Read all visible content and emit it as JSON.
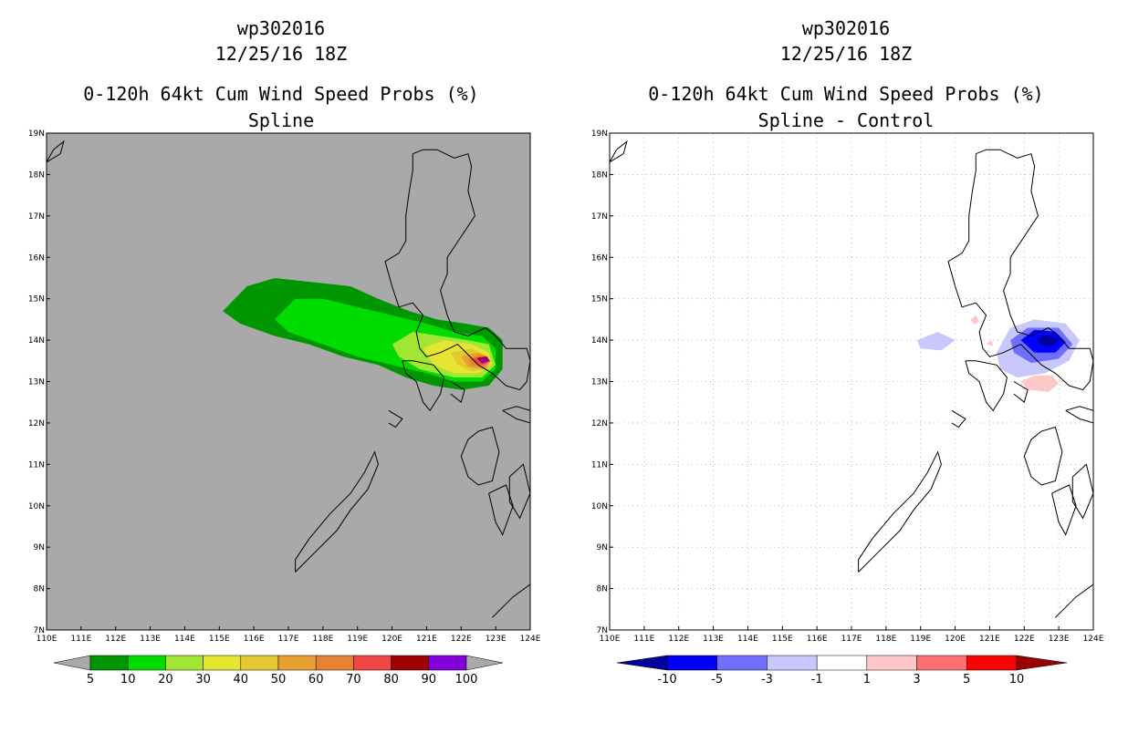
{
  "panels": [
    {
      "title_lines": [
        "wp302016",
        "12/25/16 18Z",
        "0-120h 64kt Cum Wind Speed Probs (%)",
        "Spline"
      ],
      "background": "#a9a9a9",
      "grid": false,
      "colorbar": {
        "colors": [
          "#009600",
          "#00dc00",
          "#a0e632",
          "#e6e632",
          "#e6c832",
          "#e6a032",
          "#e68232",
          "#f04646",
          "#a00000",
          "#8200dc"
        ],
        "labels": [
          "5",
          "10",
          "20",
          "30",
          "40",
          "50",
          "60",
          "70",
          "80",
          "90",
          "100"
        ]
      }
    },
    {
      "title_lines": [
        "wp302016",
        "12/25/16 18Z",
        "0-120h 64kt Cum Wind Speed Probs (%)",
        "Spline - Control"
      ],
      "background": "#ffffff",
      "grid": true,
      "colorbar": {
        "colors": [
          "#00009a",
          "#0000ff",
          "#6e6eff",
          "#c8c8ff",
          "#ffffff",
          "#ffc8c8",
          "#ff6e6e",
          "#ff0000",
          "#9a0000"
        ],
        "labels": [
          "-10",
          "-5",
          "-3",
          "-1",
          "1",
          "3",
          "5",
          "10"
        ]
      }
    }
  ],
  "chart_data": {
    "type": "heatmap",
    "x_ticks": [
      "110E",
      "111E",
      "112E",
      "113E",
      "114E",
      "115E",
      "116E",
      "117E",
      "118E",
      "119E",
      "120E",
      "121E",
      "122E",
      "123E",
      "124E"
    ],
    "y_ticks": [
      "7N",
      "8N",
      "9N",
      "10N",
      "11N",
      "12N",
      "13N",
      "14N",
      "15N",
      "16N",
      "17N",
      "18N",
      "19N"
    ],
    "xlim": [
      110,
      124
    ],
    "ylim": [
      7,
      19
    ],
    "spline_probs": [
      {
        "level": 5,
        "color": "#009600",
        "lonlat": [
          [
            115.1,
            14.7
          ],
          [
            115.8,
            15.3
          ],
          [
            116.6,
            15.5
          ],
          [
            117.7,
            15.4
          ],
          [
            118.8,
            15.3
          ],
          [
            119.6,
            15.0
          ],
          [
            120.5,
            14.7
          ],
          [
            121.3,
            14.5
          ],
          [
            122.1,
            14.4
          ],
          [
            122.8,
            14.3
          ],
          [
            123.2,
            14.0
          ],
          [
            123.2,
            13.3
          ],
          [
            122.8,
            12.9
          ],
          [
            122.0,
            12.8
          ],
          [
            121.2,
            12.9
          ],
          [
            120.4,
            13.1
          ],
          [
            119.6,
            13.4
          ],
          [
            118.6,
            13.6
          ],
          [
            117.6,
            13.9
          ],
          [
            116.6,
            14.1
          ],
          [
            115.6,
            14.4
          ]
        ]
      },
      {
        "level": 10,
        "color": "#00dc00",
        "lonlat": [
          [
            116.6,
            14.5
          ],
          [
            117.2,
            15.0
          ],
          [
            118.0,
            15.0
          ],
          [
            119.0,
            14.8
          ],
          [
            120.0,
            14.6
          ],
          [
            121.0,
            14.4
          ],
          [
            121.8,
            14.2
          ],
          [
            122.6,
            14.1
          ],
          [
            123.0,
            13.8
          ],
          [
            123.0,
            13.3
          ],
          [
            122.6,
            13.0
          ],
          [
            121.8,
            13.0
          ],
          [
            121.0,
            13.2
          ],
          [
            120.0,
            13.4
          ],
          [
            119.0,
            13.6
          ],
          [
            118.0,
            13.9
          ],
          [
            117.0,
            14.2
          ]
        ]
      },
      {
        "level": 20,
        "color": "#a0e632",
        "lonlat": [
          [
            120.0,
            13.9
          ],
          [
            120.6,
            14.2
          ],
          [
            121.4,
            14.1
          ],
          [
            122.2,
            14.0
          ],
          [
            122.8,
            13.9
          ],
          [
            123.0,
            13.4
          ],
          [
            122.6,
            13.1
          ],
          [
            121.8,
            13.1
          ],
          [
            120.8,
            13.3
          ],
          [
            120.2,
            13.6
          ]
        ]
      },
      {
        "level": 30,
        "color": "#e6e632",
        "lonlat": [
          [
            120.9,
            13.8
          ],
          [
            121.5,
            14.0
          ],
          [
            122.3,
            13.9
          ],
          [
            122.8,
            13.7
          ],
          [
            122.9,
            13.4
          ],
          [
            122.5,
            13.2
          ],
          [
            121.8,
            13.2
          ],
          [
            121.2,
            13.4
          ]
        ]
      },
      {
        "level": 40,
        "color": "#e6c832",
        "lonlat": [
          [
            121.7,
            13.7
          ],
          [
            122.3,
            13.8
          ],
          [
            122.8,
            13.6
          ],
          [
            122.8,
            13.3
          ],
          [
            122.3,
            13.25
          ],
          [
            121.9,
            13.4
          ]
        ]
      },
      {
        "level": 50,
        "color": "#e6a032",
        "lonlat": [
          [
            122.0,
            13.6
          ],
          [
            122.5,
            13.7
          ],
          [
            122.85,
            13.5
          ],
          [
            122.7,
            13.3
          ],
          [
            122.2,
            13.35
          ]
        ]
      },
      {
        "level": 60,
        "color": "#e68232",
        "lonlat": [
          [
            122.2,
            13.55
          ],
          [
            122.6,
            13.65
          ],
          [
            122.85,
            13.5
          ],
          [
            122.65,
            13.35
          ],
          [
            122.3,
            13.4
          ]
        ]
      },
      {
        "level": 70,
        "color": "#f04646",
        "lonlat": [
          [
            122.35,
            13.55
          ],
          [
            122.7,
            13.62
          ],
          [
            122.85,
            13.5
          ],
          [
            122.65,
            13.4
          ],
          [
            122.4,
            13.45
          ]
        ]
      },
      {
        "level": 80,
        "color": "#a00000",
        "lonlat": [
          [
            122.45,
            13.57
          ],
          [
            122.75,
            13.6
          ],
          [
            122.82,
            13.5
          ],
          [
            122.6,
            13.44
          ]
        ]
      },
      {
        "level": 90,
        "color": "#8200dc",
        "lonlat": [
          [
            122.55,
            13.55
          ],
          [
            122.78,
            13.56
          ],
          [
            122.78,
            13.48
          ],
          [
            122.58,
            13.47
          ]
        ]
      }
    ],
    "spline_minus_control": [
      {
        "level": -1,
        "color": "#c8c8ff",
        "lonlat": [
          [
            118.9,
            14.0
          ],
          [
            119.5,
            14.2
          ],
          [
            120.0,
            14.0
          ],
          [
            119.6,
            13.75
          ],
          [
            119.0,
            13.8
          ]
        ]
      },
      {
        "level": -1,
        "color": "#c8c8ff",
        "lonlat": [
          [
            121.2,
            13.7
          ],
          [
            121.6,
            14.3
          ],
          [
            122.3,
            14.5
          ],
          [
            123.2,
            14.4
          ],
          [
            123.6,
            14.0
          ],
          [
            123.3,
            13.5
          ],
          [
            122.6,
            13.2
          ],
          [
            121.8,
            13.1
          ],
          [
            121.3,
            13.3
          ]
        ]
      },
      {
        "level": -3,
        "color": "#6e6eff",
        "lonlat": [
          [
            121.6,
            14.0
          ],
          [
            122.1,
            14.3
          ],
          [
            123.0,
            14.3
          ],
          [
            123.4,
            13.9
          ],
          [
            123.0,
            13.55
          ],
          [
            122.2,
            13.45
          ],
          [
            121.7,
            13.7
          ]
        ]
      },
      {
        "level": -5,
        "color": "#0000ff",
        "lonlat": [
          [
            121.9,
            14.0
          ],
          [
            122.3,
            14.25
          ],
          [
            122.9,
            14.2
          ],
          [
            123.2,
            13.95
          ],
          [
            122.9,
            13.7
          ],
          [
            122.3,
            13.7
          ]
        ]
      },
      {
        "level": -10,
        "color": "#00009a",
        "lonlat": [
          [
            122.4,
            14.05
          ],
          [
            122.7,
            14.15
          ],
          [
            123.0,
            14.0
          ],
          [
            122.8,
            13.85
          ],
          [
            122.45,
            13.9
          ]
        ]
      },
      {
        "level": 1,
        "color": "#ffc8c8",
        "lonlat": [
          [
            121.9,
            13.0
          ],
          [
            122.3,
            13.15
          ],
          [
            122.8,
            13.15
          ],
          [
            123.0,
            12.95
          ],
          [
            122.7,
            12.75
          ],
          [
            122.1,
            12.8
          ]
        ]
      },
      {
        "level": 1,
        "color": "#ffc8c8",
        "lonlat": [
          [
            120.45,
            14.5
          ],
          [
            120.6,
            14.6
          ],
          [
            120.7,
            14.45
          ],
          [
            120.55,
            14.38
          ]
        ]
      },
      {
        "level": 1,
        "color": "#ffc8c8",
        "lonlat": [
          [
            120.9,
            13.9
          ],
          [
            121.05,
            14.0
          ],
          [
            121.1,
            13.85
          ]
        ]
      }
    ],
    "coastlines": [
      [
        [
          120.6,
          18.5
        ],
        [
          120.9,
          18.6
        ],
        [
          121.3,
          18.6
        ],
        [
          121.8,
          18.4
        ],
        [
          122.2,
          18.5
        ],
        [
          122.3,
          18.2
        ],
        [
          122.2,
          17.6
        ],
        [
          122.4,
          17.0
        ],
        [
          122.0,
          16.5
        ],
        [
          121.6,
          16.0
        ],
        [
          121.6,
          15.6
        ],
        [
          121.4,
          15.2
        ],
        [
          121.6,
          14.6
        ],
        [
          121.8,
          14.2
        ],
        [
          122.2,
          14.1
        ],
        [
          122.7,
          14.3
        ],
        [
          123.0,
          14.1
        ],
        [
          123.3,
          13.8
        ],
        [
          123.9,
          13.8
        ],
        [
          124.0,
          13.5
        ],
        [
          123.9,
          13.0
        ],
        [
          123.7,
          12.8
        ],
        [
          123.3,
          12.9
        ],
        [
          122.9,
          13.2
        ],
        [
          122.5,
          13.4
        ],
        [
          121.9,
          13.9
        ],
        [
          121.4,
          13.7
        ],
        [
          121.0,
          13.6
        ],
        [
          120.8,
          13.8
        ],
        [
          120.7,
          14.2
        ],
        [
          120.9,
          14.6
        ],
        [
          120.6,
          14.9
        ],
        [
          120.2,
          14.8
        ],
        [
          120.0,
          15.3
        ],
        [
          119.8,
          15.9
        ],
        [
          120.2,
          16.1
        ],
        [
          120.4,
          16.4
        ],
        [
          120.4,
          17.0
        ],
        [
          120.5,
          17.6
        ],
        [
          120.6,
          18.1
        ],
        [
          120.6,
          18.5
        ]
      ],
      [
        [
          120.3,
          13.5
        ],
        [
          120.6,
          13.5
        ],
        [
          121.2,
          13.4
        ],
        [
          121.5,
          13.1
        ],
        [
          121.4,
          12.7
        ],
        [
          121.1,
          12.3
        ],
        [
          120.9,
          12.5
        ],
        [
          120.7,
          13.0
        ],
        [
          120.4,
          13.2
        ],
        [
          120.3,
          13.5
        ]
      ],
      [
        [
          117.2,
          8.4
        ],
        [
          117.8,
          8.9
        ],
        [
          118.4,
          9.4
        ],
        [
          118.8,
          9.9
        ],
        [
          119.3,
          10.4
        ],
        [
          119.6,
          11.0
        ],
        [
          119.5,
          11.3
        ],
        [
          119.2,
          10.8
        ],
        [
          118.8,
          10.3
        ],
        [
          118.2,
          9.8
        ],
        [
          117.6,
          9.2
        ],
        [
          117.2,
          8.7
        ],
        [
          117.2,
          8.4
        ]
      ],
      [
        [
          122.5,
          11.8
        ],
        [
          122.9,
          11.9
        ],
        [
          123.1,
          11.3
        ],
        [
          122.9,
          10.6
        ],
        [
          122.5,
          10.5
        ],
        [
          122.2,
          10.7
        ],
        [
          122.0,
          11.2
        ],
        [
          122.2,
          11.6
        ],
        [
          122.5,
          11.8
        ]
      ],
      [
        [
          123.2,
          12.3
        ],
        [
          123.6,
          12.4
        ],
        [
          124.0,
          12.3
        ],
        [
          124.0,
          12.0
        ],
        [
          123.6,
          12.1
        ],
        [
          123.2,
          12.3
        ]
      ],
      [
        [
          122.8,
          10.3
        ],
        [
          123.3,
          10.5
        ],
        [
          123.5,
          10.0
        ],
        [
          123.2,
          9.3
        ],
        [
          123.0,
          9.6
        ],
        [
          122.8,
          10.3
        ]
      ],
      [
        [
          123.4,
          10.7
        ],
        [
          123.8,
          11.0
        ],
        [
          124.0,
          10.3
        ],
        [
          123.7,
          9.7
        ],
        [
          123.4,
          10.1
        ],
        [
          123.4,
          10.7
        ]
      ],
      [
        [
          121.7,
          13.0
        ],
        [
          122.1,
          12.8
        ],
        [
          122.0,
          12.5
        ],
        [
          121.7,
          12.7
        ]
      ],
      [
        [
          122.9,
          7.3
        ],
        [
          123.5,
          7.8
        ],
        [
          124.0,
          8.1
        ],
        [
          124.0,
          7.0
        ],
        [
          122.9,
          7.0
        ]
      ],
      [
        [
          110.0,
          18.3
        ],
        [
          110.2,
          18.6
        ],
        [
          110.5,
          18.8
        ],
        [
          110.4,
          18.5
        ],
        [
          110.0,
          18.3
        ]
      ],
      [
        [
          119.9,
          12.3
        ],
        [
          120.3,
          12.1
        ],
        [
          120.1,
          11.9
        ],
        [
          119.9,
          12.0
        ]
      ]
    ]
  }
}
